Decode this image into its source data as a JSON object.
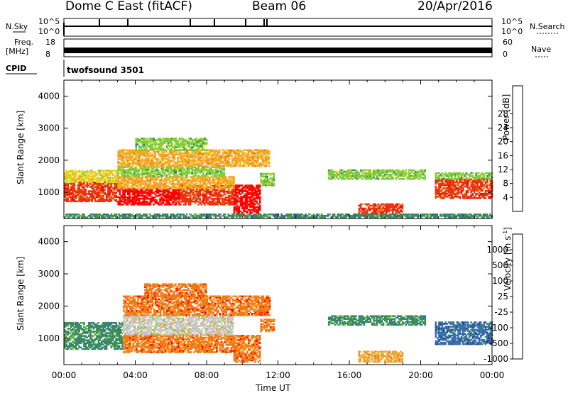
{
  "header": {
    "title": "Dome C East (fitACF)",
    "beam": "Beam 06",
    "date": "20/Apr/2016"
  },
  "strips": {
    "nsky_label": "N.Sky",
    "nsky_ticks": [
      "10^5",
      "10^0"
    ],
    "nsearch_label": "N.Search",
    "nsearch_ticks": [
      "10^5",
      "10^0"
    ],
    "freq_label": "Freq.",
    "freq_unit": "[MHz]",
    "freq_ticks": [
      "18",
      "8"
    ],
    "nave_label": "Nave",
    "nave_ticks": [
      "60",
      "0"
    ],
    "cpid_label": "CPID",
    "cpid_value": "twofsound 3501"
  },
  "chart_data": [
    {
      "type": "heatmap",
      "name": "Power",
      "xlabel": "",
      "ylabel": "Slant Range [km]",
      "x_range": [
        0,
        24
      ],
      "ylim": [
        180,
        4500
      ],
      "y_ticks": [
        1000,
        2000,
        3000,
        4000
      ],
      "colorbar_label": "Power [dB]",
      "colorbar_ticks": [
        "4",
        "8",
        "12",
        "16",
        "20",
        "24",
        "28"
      ],
      "colorbar_range": [
        0,
        32
      ],
      "colors": [
        "#0000ff",
        "#2f54a8",
        "#3a8c5e",
        "#7fcc3d",
        "#e6d21e",
        "#f5a623",
        "#ef7a16",
        "#e8340f",
        "#ff0000"
      ],
      "bands": [
        {
          "x": [
            0.0,
            3.0
          ],
          "y": [
            700,
            1300
          ],
          "v": 27
        },
        {
          "x": [
            3.0,
            6.5
          ],
          "y": [
            600,
            1100
          ],
          "v": 29
        },
        {
          "x": [
            6.5,
            9.5
          ],
          "y": [
            600,
            1200
          ],
          "v": 28
        },
        {
          "x": [
            9.5,
            11.0
          ],
          "y": [
            250,
            1200
          ],
          "v": 29
        },
        {
          "x": [
            0.0,
            3.0
          ],
          "y": [
            1300,
            1700
          ],
          "v": 15
        },
        {
          "x": [
            3.0,
            9.5
          ],
          "y": [
            1100,
            1500
          ],
          "v": 20
        },
        {
          "x": [
            3.0,
            9.0
          ],
          "y": [
            1500,
            1800
          ],
          "v": 13
        },
        {
          "x": [
            3.0,
            11.5
          ],
          "y": [
            1800,
            2300
          ],
          "v": 18
        },
        {
          "x": [
            4.0,
            8.0
          ],
          "y": [
            2300,
            2700
          ],
          "v": 14
        },
        {
          "x": [
            11.0,
            11.8
          ],
          "y": [
            1200,
            1600
          ],
          "v": 12
        },
        {
          "x": [
            14.8,
            20.2
          ],
          "y": [
            1400,
            1700
          ],
          "v": 12
        },
        {
          "x": [
            20.8,
            24.0
          ],
          "y": [
            800,
            1400
          ],
          "v": 27
        },
        {
          "x": [
            20.8,
            24.0
          ],
          "y": [
            1400,
            1600
          ],
          "v": 14
        },
        {
          "x": [
            16.5,
            19.0
          ],
          "y": [
            250,
            650
          ],
          "v": 25
        },
        {
          "x": [
            0.0,
            24.0
          ],
          "y": [
            200,
            320
          ],
          "v": 10
        }
      ]
    },
    {
      "type": "heatmap",
      "name": "Velocity",
      "xlabel": "Time UT",
      "ylabel": "Slant Range [km]",
      "x_range": [
        0,
        24
      ],
      "x_ticks": [
        "00:00",
        "04:00",
        "08:00",
        "12:00",
        "16:00",
        "20:00",
        "00:00"
      ],
      "ylim": [
        180,
        4500
      ],
      "y_ticks": [
        1000,
        2000,
        3000,
        4000
      ],
      "colorbar_label": "Velocity [m s^-1]",
      "colorbar_ticks": [
        "1000",
        "500",
        "100",
        "25",
        "-25",
        "-100",
        "-500",
        "-1000"
      ],
      "colors": [
        "#2b3fa8",
        "#3a70a8",
        "#3a8c5e",
        "#7fcc3d",
        "#c8c8c8",
        "#f5a623",
        "#ef7a16",
        "#ff0000"
      ],
      "bands": [
        {
          "x": [
            0.0,
            3.3
          ],
          "y": [
            650,
            1500
          ],
          "cls": 2
        },
        {
          "x": [
            3.3,
            9.5
          ],
          "y": [
            550,
            1100
          ],
          "cls": 6
        },
        {
          "x": [
            9.5,
            11.0
          ],
          "y": [
            250,
            1100
          ],
          "cls": 6
        },
        {
          "x": [
            3.3,
            9.5
          ],
          "y": [
            1100,
            1700
          ],
          "cls": 4
        },
        {
          "x": [
            3.3,
            11.5
          ],
          "y": [
            1700,
            2300
          ],
          "cls": 6
        },
        {
          "x": [
            4.5,
            8.0
          ],
          "y": [
            2300,
            2700
          ],
          "cls": 6
        },
        {
          "x": [
            11.0,
            11.8
          ],
          "y": [
            1200,
            1600
          ],
          "cls": 6
        },
        {
          "x": [
            14.8,
            20.2
          ],
          "y": [
            1400,
            1700
          ],
          "cls": 2
        },
        {
          "x": [
            20.8,
            24.0
          ],
          "y": [
            800,
            1500
          ],
          "cls": 1
        },
        {
          "x": [
            16.5,
            19.0
          ],
          "y": [
            250,
            600
          ],
          "cls": 5
        }
      ]
    }
  ]
}
